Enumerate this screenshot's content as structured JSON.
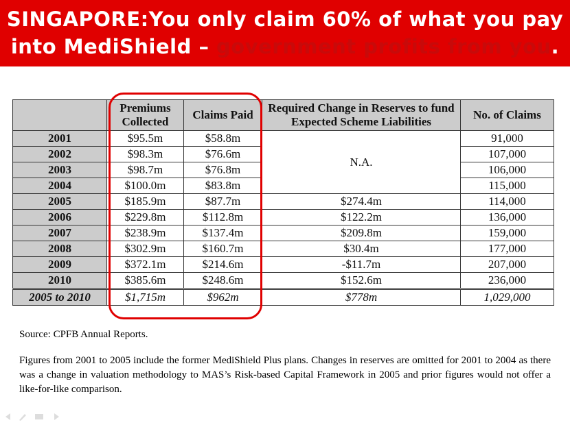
{
  "header": {
    "title_main": "SINGAPORE:You only claim 60% of what you pay into MediShield – ",
    "title_highlight": "government profits from you",
    "title_end": "."
  },
  "table": {
    "headers": [
      "Premiums Collected",
      "Claims Paid",
      "Required Change in Reserves to fund Expected Scheme Liabilities",
      "No. of Claims"
    ],
    "na": "N.A.",
    "rows": [
      {
        "year": "2001",
        "premiums": "$95.5m",
        "claims": "$58.8m",
        "count": "91,000"
      },
      {
        "year": "2002",
        "premiums": "$98.3m",
        "claims": "$76.6m",
        "count": "107,000"
      },
      {
        "year": "2003",
        "premiums": "$98.7m",
        "claims": "$76.8m",
        "count": "106,000"
      },
      {
        "year": "2004",
        "premiums": "$100.0m",
        "claims": "$83.8m",
        "count": "115,000"
      },
      {
        "year": "2005",
        "premiums": "$185.9m",
        "claims": "$87.7m",
        "reserves": "$274.4m",
        "count": "114,000"
      },
      {
        "year": "2006",
        "premiums": "$229.8m",
        "claims": "$112.8m",
        "reserves": "$122.2m",
        "count": "136,000"
      },
      {
        "year": "2007",
        "premiums": "$238.9m",
        "claims": "$137.4m",
        "reserves": "$209.8m",
        "count": "159,000"
      },
      {
        "year": "2008",
        "premiums": "$302.9m",
        "claims": "$160.7m",
        "reserves": "$30.4m",
        "count": "177,000"
      },
      {
        "year": "2009",
        "premiums": "$372.1m",
        "claims": "$214.6m",
        "reserves": "-$11.7m",
        "count": "207,000"
      },
      {
        "year": "2010",
        "premiums": "$385.6m",
        "claims": "$248.6m",
        "reserves": "$152.6m",
        "count": "236,000"
      }
    ],
    "total": {
      "year": "2005 to 2010",
      "premiums": "$1,715m",
      "claims": "$962m",
      "reserves": "$778m",
      "count": "1,029,000"
    }
  },
  "source": "Source: CPFB Annual Reports.",
  "note": "Figures from 2001 to 2005 include the former MediShield Plus plans. Changes in reserves are omitted for 2001 to 2004 as there was a change in valuation methodology to MAS’s Risk-based Capital Framework in 2005 and prior figures would not offer a like-for-like comparison."
}
